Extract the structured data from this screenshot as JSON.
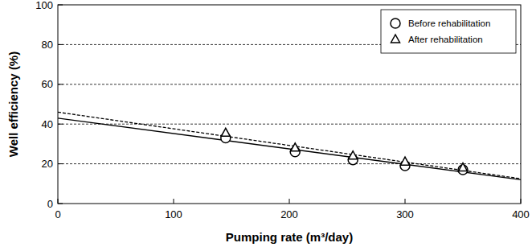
{
  "chart_data": {
    "type": "scatter",
    "x_label": "Pumping rate (m³/day)",
    "y_label": "Well efficiency (%)",
    "xlim": [
      0,
      400
    ],
    "xticks": [
      0,
      100,
      200,
      300,
      400
    ],
    "ylim": [
      0,
      100
    ],
    "yticks": [
      0,
      20,
      40,
      60,
      80,
      100
    ],
    "grid": true,
    "legend": "upper right",
    "series": [
      {
        "name": "Before rehabilitation",
        "color": "#000000",
        "marker": "circle",
        "type": "scatter",
        "x": [
          145,
          205,
          255,
          300,
          350
        ],
        "values": [
          33,
          26,
          22,
          19,
          17
        ]
      },
      {
        "name": "After rehabilitation",
        "color": "#000000",
        "marker": "triangle",
        "type": "scatter",
        "x": [
          145,
          205,
          255,
          300,
          350
        ],
        "values": [
          35.5,
          28,
          24,
          21,
          18
        ]
      },
      {
        "color": "#000000",
        "type": "line",
        "line_style": "solid",
        "x": [
          0,
          400
        ],
        "values": [
          43,
          12
        ]
      },
      {
        "color": "#000000",
        "type": "line",
        "line_style": "dashed",
        "x": [
          0,
          400
        ],
        "values": [
          46,
          12.5
        ]
      }
    ]
  }
}
